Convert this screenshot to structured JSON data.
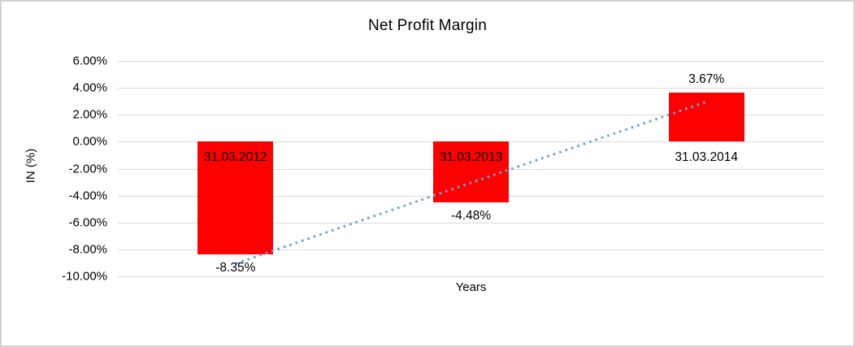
{
  "chart_data": {
    "type": "bar",
    "title": "Net Profit Margin",
    "xlabel": "Years",
    "ylabel": "IN (%)",
    "categories": [
      "31.03.2012",
      "31.03.2013",
      "31.03.2014"
    ],
    "values": [
      -8.35,
      -4.48,
      3.67
    ],
    "data_labels": [
      "-8.35%",
      "-4.48%",
      "3.67%"
    ],
    "y_ticks": [
      {
        "label": "6.00%",
        "value": 6
      },
      {
        "label": "4.00%",
        "value": 4
      },
      {
        "label": "2.00%",
        "value": 2
      },
      {
        "label": "0.00%",
        "value": 0
      },
      {
        "label": "-2.00%",
        "value": -2
      },
      {
        "label": "-4.00%",
        "value": -4
      },
      {
        "label": "-6.00%",
        "value": -6
      },
      {
        "label": "-8.00%",
        "value": -8
      },
      {
        "label": "-10.00%",
        "value": -10
      }
    ],
    "ylim": [
      -10,
      6
    ],
    "grid": true,
    "legend": "none",
    "bar_color": "#ff0000",
    "gridline_color": "#d9d9d9",
    "trendline": {
      "type": "linear",
      "style": "dotted",
      "color": "#6e9fd9",
      "start_value": -9.06,
      "end_value": 2.96
    }
  }
}
